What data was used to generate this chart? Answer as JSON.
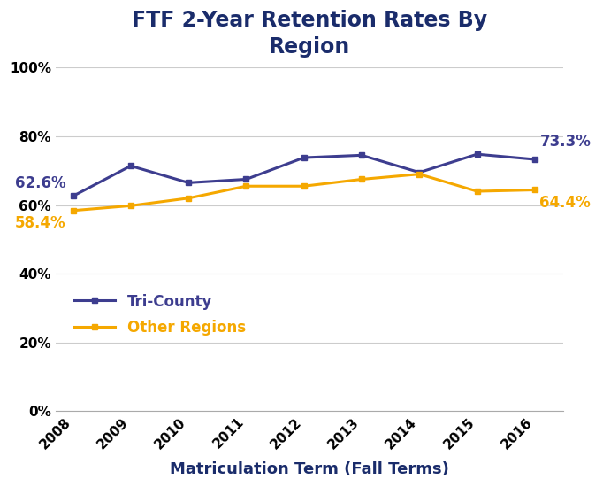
{
  "title": "FTF 2-Year Retention Rates By\nRegion",
  "xlabel": "Matriculation Term (Fall Terms)",
  "years": [
    2008,
    2009,
    2010,
    2011,
    2012,
    2013,
    2014,
    2015,
    2016
  ],
  "tri_county": [
    0.626,
    0.714,
    0.665,
    0.675,
    0.738,
    0.745,
    0.695,
    0.748,
    0.733
  ],
  "other_regions": [
    0.584,
    0.598,
    0.62,
    0.655,
    0.655,
    0.675,
    0.69,
    0.64,
    0.644
  ],
  "tri_county_color": "#3d3d8f",
  "other_regions_color": "#f5a800",
  "title_color": "#1a2c6b",
  "xlabel_color": "#1a2c6b",
  "label_first_tri": "62.6%",
  "label_last_tri": "73.3%",
  "label_first_other": "58.4%",
  "label_last_other": "64.4%",
  "ylim": [
    0,
    1.0
  ],
  "yticks": [
    0.0,
    0.2,
    0.4,
    0.6,
    0.8,
    1.0
  ],
  "background_color": "#ffffff",
  "grid_color": "#cccccc",
  "legend_tri": "Tri-County",
  "legend_other": "Other Regions"
}
